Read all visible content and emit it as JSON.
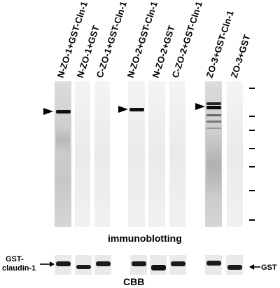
{
  "lanes": [
    "N-ZO-1+GST-Cln-1",
    "N-ZO-1+GST",
    "C-ZO-1+GST-Cln-1",
    "N-ZO-2+GST-Cln-1",
    "N-ZO-2+GST",
    "C-ZO-2+GST-Cln-1",
    "ZO-3+GST-Cln-1",
    "ZO-3+GST"
  ],
  "immunoblot_caption": "immunoblotting",
  "cbb_caption": "CBB",
  "left_label_line1": "GST-",
  "left_label_line2": "claudin-1",
  "right_label": "GST"
}
